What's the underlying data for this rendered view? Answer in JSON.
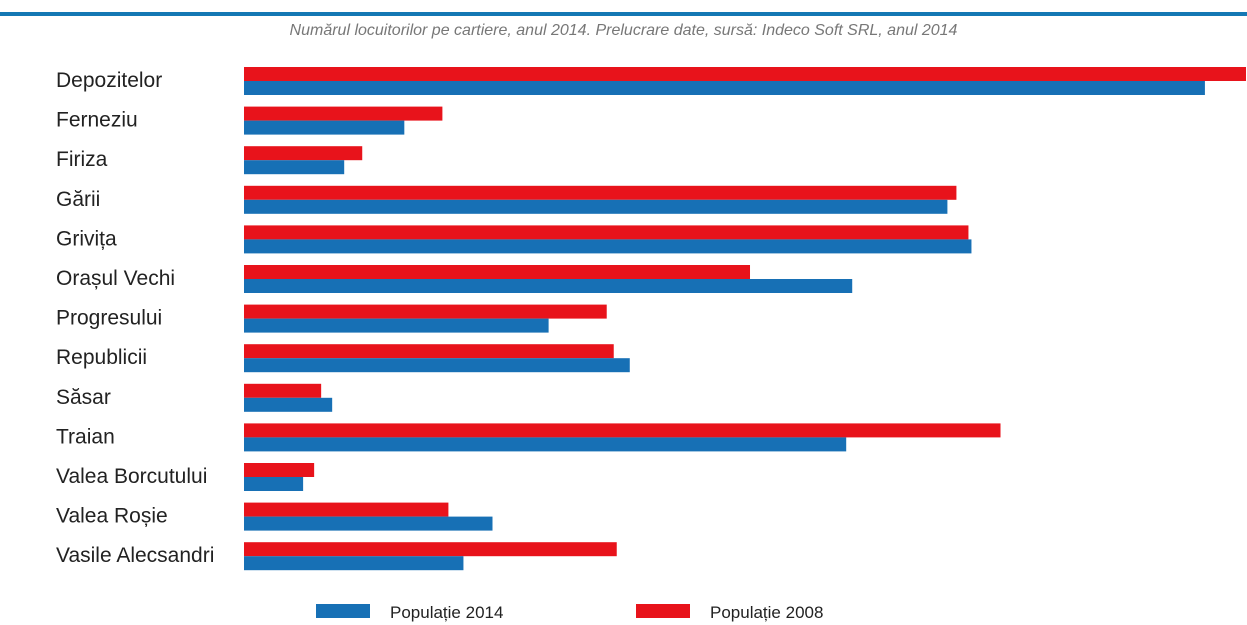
{
  "colors": {
    "accent_rule": "#1478b4",
    "series_2014": "#1770b5",
    "series_2008": "#e8131b"
  },
  "chart_data": {
    "type": "bar",
    "orientation": "horizontal",
    "subtitle": "Numărul locuitorilor pe cartiere, anul 2014.  Prelucrare date, sursă: Indeco Soft SRL, anul 2014",
    "categories": [
      "Depozitelor",
      "Ferneziu",
      "Firiza",
      "Gării",
      "Grivița",
      "Orașul Vechi",
      "Progresului",
      "Republicii",
      "Săsar",
      "Traian",
      "Valea Borcutului",
      "Valea Roșie",
      "Vasile Alecsandri"
    ],
    "series": [
      {
        "name": "Populație 2008",
        "color": "#e8131b",
        "values": [
          100,
          19.8,
          11.8,
          71.1,
          72.3,
          50.5,
          36.2,
          36.9,
          7.7,
          75.5,
          7.0,
          20.4,
          37.2
        ]
      },
      {
        "name": "Populație 2014",
        "color": "#1770b5",
        "values": [
          95.9,
          16.0,
          10.0,
          70.2,
          72.6,
          60.7,
          30.4,
          38.5,
          8.8,
          60.1,
          5.9,
          24.8,
          21.9
        ]
      }
    ],
    "xlim": [
      0,
      100
    ],
    "grid": false,
    "legend": {
      "placement": "bottom",
      "entries": [
        "Populație 2014",
        "Populație 2008"
      ]
    }
  }
}
